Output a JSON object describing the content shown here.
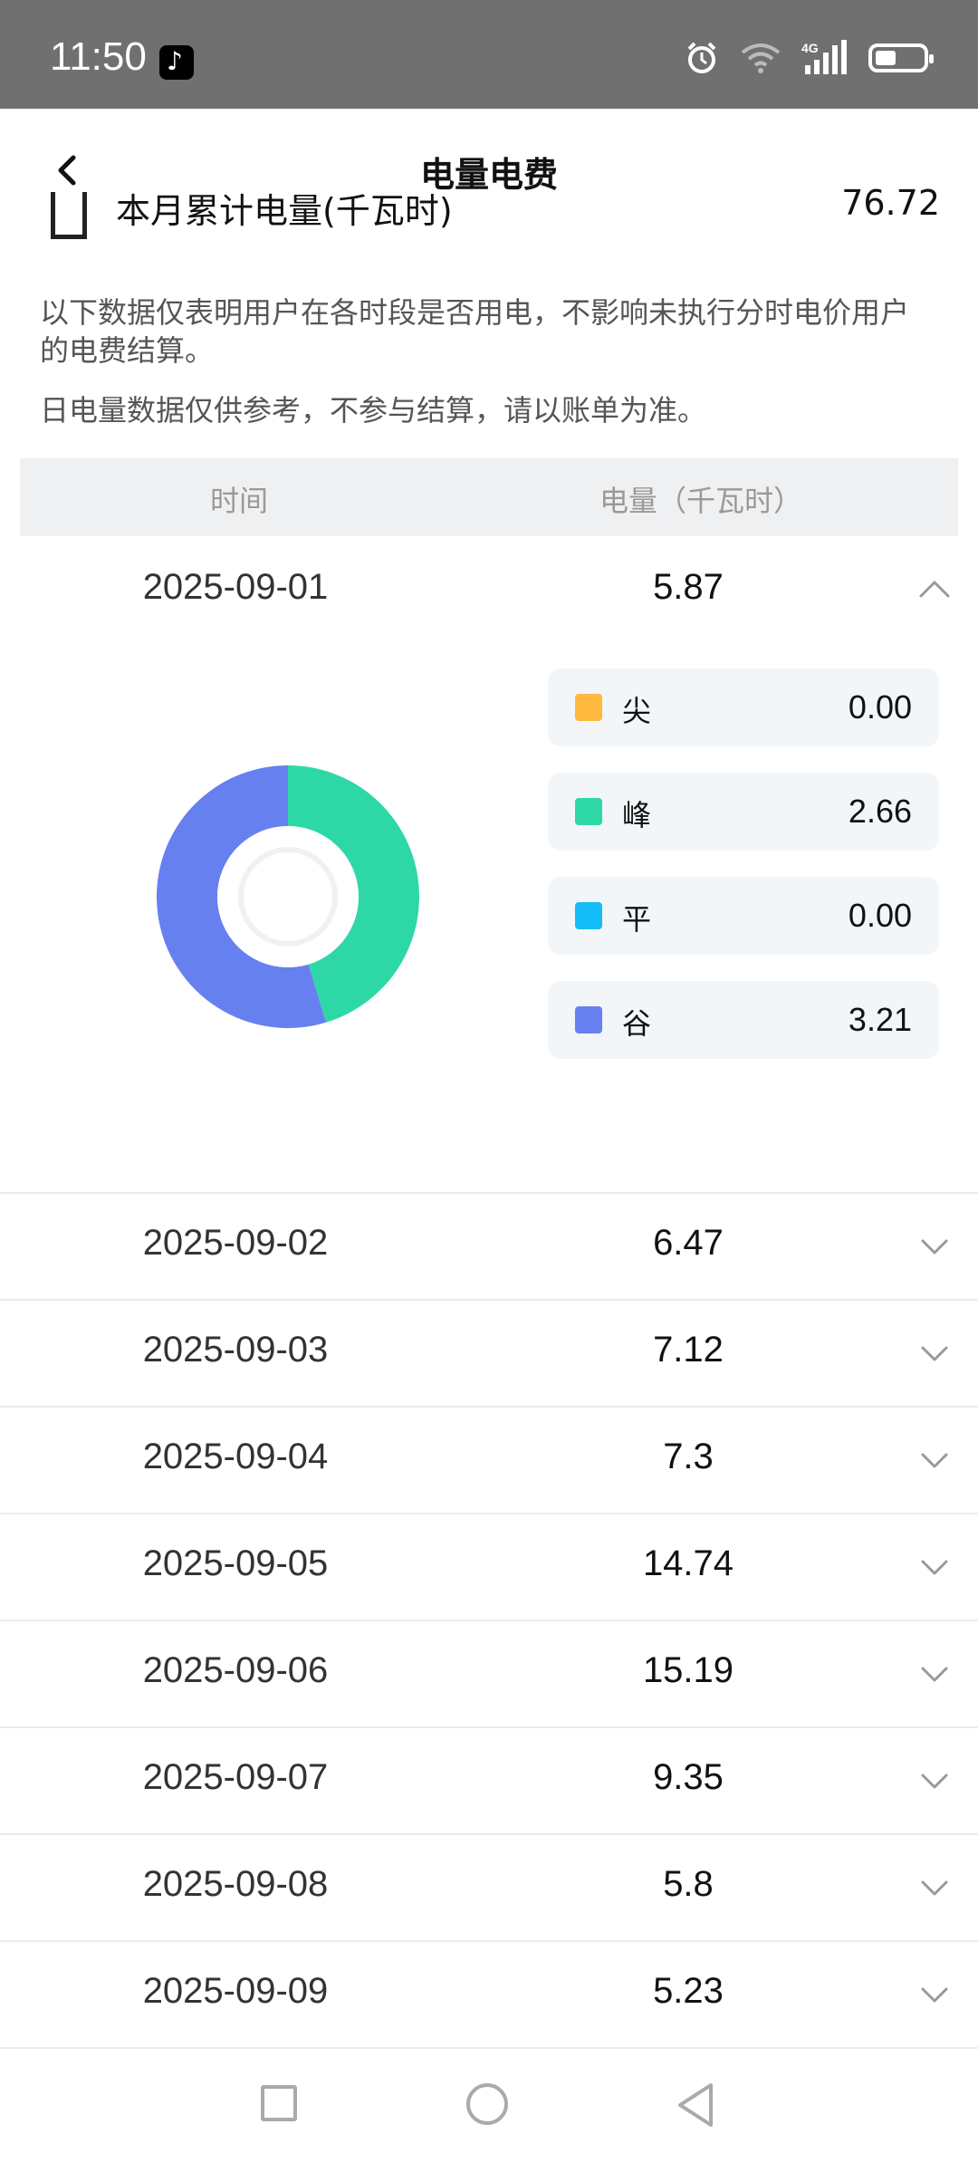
{
  "status_bar": {
    "time": "11:50"
  },
  "header": {
    "title": "电量电费"
  },
  "monthly": {
    "label": "本月累计电量(千瓦时)",
    "value": "76.72"
  },
  "notice": {
    "line1": "以下数据仅表明用户在各时段是否用电，不影响未执行分时电价用户的电费结算。",
    "line2": "日电量数据仅供参考，不参与结算，请以账单为准。"
  },
  "table": {
    "headers": {
      "time": "时间",
      "amount": "电量（千瓦时）"
    },
    "expanded": {
      "date": "2025-09-01",
      "value": "5.87",
      "breakdown": [
        {
          "label": "尖",
          "value": "0.00",
          "color": "#FFB93E"
        },
        {
          "label": "峰",
          "value": "2.66",
          "color": "#2ED8A6"
        },
        {
          "label": "平",
          "value": "0.00",
          "color": "#15BDF8"
        },
        {
          "label": "谷",
          "value": "3.21",
          "color": "#6680F0"
        }
      ]
    },
    "rows": [
      {
        "date": "2025-09-02",
        "value": "6.47"
      },
      {
        "date": "2025-09-03",
        "value": "7.12"
      },
      {
        "date": "2025-09-04",
        "value": "7.3"
      },
      {
        "date": "2025-09-05",
        "value": "14.74"
      },
      {
        "date": "2025-09-06",
        "value": "15.19"
      },
      {
        "date": "2025-09-07",
        "value": "9.35"
      },
      {
        "date": "2025-09-08",
        "value": "5.8"
      },
      {
        "date": "2025-09-09",
        "value": "5.23"
      }
    ]
  },
  "chart_data": {
    "type": "pie",
    "categories": [
      "尖",
      "峰",
      "平",
      "谷"
    ],
    "values": [
      0.0,
      2.66,
      0.0,
      3.21
    ],
    "colors": [
      "#FFB93E",
      "#2ED8A6",
      "#15BDF8",
      "#6680F0"
    ]
  }
}
